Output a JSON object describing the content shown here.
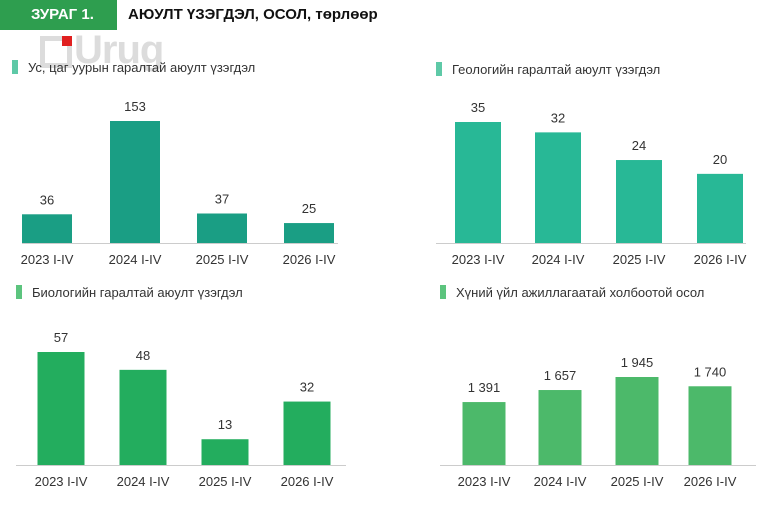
{
  "figure": {
    "tag": "ЗУРАГ 1.",
    "title": "АЮУЛТ ҮЗЭГДЭЛ, ОСОЛ, төрлөөр",
    "logo": "Urug"
  },
  "chart_data": [
    {
      "type": "bar",
      "title": "Ус, цаг уурын гаралтай аюулт үзэгдэл",
      "categories": [
        "2023 I-IV",
        "2024 I-IV",
        "2025 I-IV",
        "2026 I-IV"
      ],
      "values": [
        36,
        153,
        37,
        25
      ],
      "value_labels": [
        "36",
        "153",
        "37",
        "25"
      ],
      "ylim": [
        0,
        153
      ],
      "color": "#1a9e84",
      "swatch": "#5ec9a7",
      "grid": false,
      "legend": "none"
    },
    {
      "type": "bar",
      "title": "Геологийн гаралтай аюулт үзэгдэл",
      "categories": [
        "2023 I-IV",
        "2024 I-IV",
        "2025 I-IV",
        "2026 I-IV"
      ],
      "values": [
        35,
        32,
        24,
        20
      ],
      "value_labels": [
        "35",
        "32",
        "24",
        "20"
      ],
      "ylim": [
        0,
        35
      ],
      "color": "#28b896",
      "swatch": "#5ec9a7",
      "grid": false,
      "legend": "none"
    },
    {
      "type": "bar",
      "title": "Биологийн гаралтай аюулт үзэгдэл",
      "categories": [
        "2023 I-IV",
        "2024 I-IV",
        "2025 I-IV",
        "2026 I-IV"
      ],
      "values": [
        57,
        48,
        13,
        32
      ],
      "value_labels": [
        "57",
        "48",
        "13",
        "32"
      ],
      "ylim": [
        0,
        57
      ],
      "color": "#23ad5e",
      "swatch": "#5cc47e",
      "grid": false,
      "legend": "none"
    },
    {
      "type": "bar",
      "title": "Хүний үйл ажиллагаатай холбоотой осол",
      "categories": [
        "2023 I-IV",
        "2024 I-IV",
        "2025 I-IV",
        "2026 I-IV"
      ],
      "values": [
        1391,
        1657,
        1945,
        1740
      ],
      "value_labels": [
        "1 391",
        "1 657",
        "1 945",
        "1 740"
      ],
      "ylim": [
        0,
        1945
      ],
      "color": "#4cb96a",
      "swatch": "#5cc47e",
      "grid": false,
      "legend": "none"
    }
  ],
  "colors": {
    "tag_bg": "#2e9e4f",
    "axis": "#cccccc"
  }
}
